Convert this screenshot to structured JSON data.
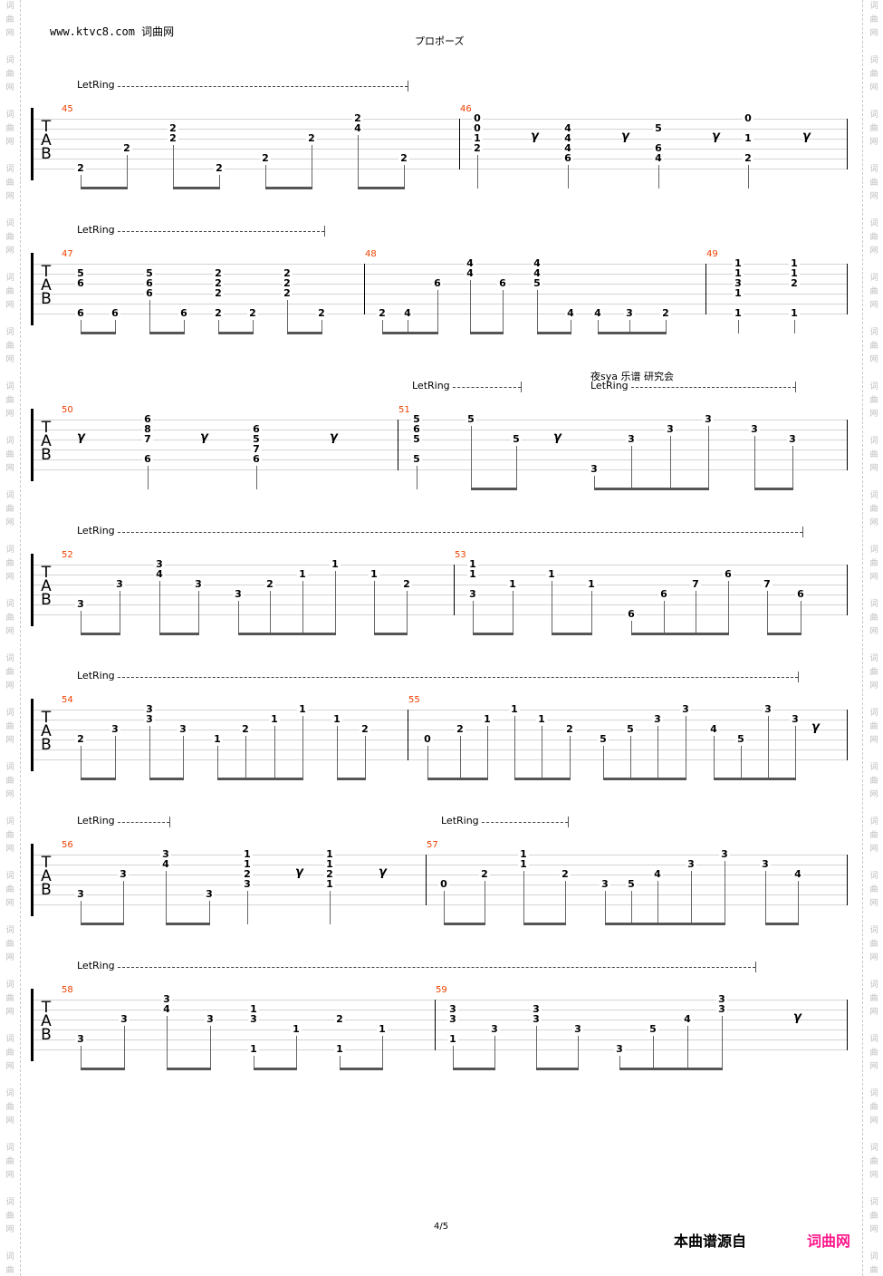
{
  "header": {
    "site": "www.ktvc8.com",
    "site_cn": "词曲网",
    "title": "プロポーズ"
  },
  "watermark": "词曲网",
  "clef": [
    "T",
    "A",
    "B"
  ],
  "let_ring": "LetRing",
  "annotation": "夜sya 乐谱 研究会",
  "footer": {
    "page": "4/5",
    "source_label": "本曲谱源自",
    "source_logo": "词曲网"
  },
  "colors": {
    "measure_number": "#f04000",
    "logo": "#ff1a8c"
  },
  "systems": [
    {
      "measures": [
        {
          "number": "45",
          "beats": [
            [
              [
                6,
                "2"
              ]
            ],
            [
              [
                4,
                "2"
              ]
            ],
            [
              [
                2,
                "2"
              ],
              [
                3,
                "2"
              ]
            ],
            [
              [
                6,
                "2"
              ]
            ],
            [
              [
                5,
                "2"
              ]
            ],
            [
              [
                3,
                "2"
              ]
            ],
            [
              [
                1,
                "2"
              ],
              [
                2,
                "4"
              ]
            ],
            [
              [
                5,
                "2"
              ]
            ]
          ]
        },
        {
          "number": "46",
          "beats": [
            [
              [
                1,
                "0"
              ],
              [
                2,
                "0"
              ],
              [
                3,
                "1"
              ],
              [
                4,
                "2"
              ]
            ],
            "R",
            [
              [
                2,
                "4"
              ],
              [
                3,
                "4"
              ],
              [
                4,
                "4"
              ],
              [
                5,
                "6"
              ]
            ],
            "R",
            [
              [
                2,
                "5"
              ],
              [
                4,
                "6"
              ],
              [
                5,
                "4"
              ]
            ],
            "R",
            [
              [
                1,
                "0"
              ],
              [
                3,
                "1"
              ],
              [
                5,
                "2"
              ]
            ],
            "R"
          ]
        }
      ]
    },
    {
      "measures": [
        {
          "number": "47",
          "beats": [
            [
              [
                2,
                "5"
              ],
              [
                3,
                "6"
              ],
              [
                6,
                "6"
              ]
            ],
            [
              [
                6,
                "6"
              ]
            ],
            [
              [
                2,
                "5"
              ],
              [
                3,
                "6"
              ],
              [
                4,
                "6"
              ]
            ],
            [
              [
                6,
                "6"
              ]
            ],
            [
              [
                2,
                "2"
              ],
              [
                3,
                "2"
              ],
              [
                4,
                "2"
              ],
              [
                6,
                "2"
              ]
            ],
            [
              [
                6,
                "2"
              ]
            ],
            [
              [
                2,
                "2"
              ],
              [
                3,
                "2"
              ],
              [
                4,
                "2"
              ]
            ],
            [
              [
                6,
                "2"
              ]
            ]
          ]
        },
        {
          "number": "48",
          "beats": [
            [
              [
                6,
                "2"
              ]
            ],
            [
              [
                6,
                "4"
              ]
            ],
            [
              [
                3,
                "6"
              ]
            ],
            [
              [
                1,
                "4"
              ],
              [
                2,
                "4"
              ]
            ],
            [
              [
                3,
                "6"
              ]
            ],
            [
              [
                1,
                "4"
              ],
              [
                2,
                "4"
              ],
              [
                3,
                "5"
              ]
            ],
            [
              [
                6,
                "4"
              ]
            ],
            [
              [
                6,
                "4"
              ]
            ],
            [
              [
                6,
                "3"
              ]
            ],
            [
              [
                6,
                "2"
              ]
            ]
          ]
        },
        {
          "number": "49",
          "beats": [
            [
              [
                1,
                "1"
              ],
              [
                2,
                "1"
              ],
              [
                3,
                "3"
              ],
              [
                4,
                "1"
              ],
              [
                6,
                "1"
              ]
            ],
            [
              [
                1,
                "1"
              ],
              [
                2,
                "1"
              ],
              [
                3,
                "2"
              ],
              [
                6,
                "1"
              ]
            ]
          ]
        }
      ]
    },
    {
      "measures": [
        {
          "number": "50",
          "beats": [
            "R",
            [
              [
                1,
                "6"
              ],
              [
                2,
                "8"
              ],
              [
                3,
                "7"
              ],
              [
                5,
                "6"
              ]
            ],
            "R",
            [
              [
                2,
                "6"
              ],
              [
                3,
                "5"
              ],
              [
                4,
                "7"
              ],
              [
                5,
                "6"
              ]
            ],
            "R"
          ]
        },
        {
          "number": "51",
          "beats": [
            [
              [
                1,
                "5"
              ],
              [
                2,
                "6"
              ],
              [
                3,
                "5"
              ],
              [
                5,
                "5"
              ]
            ],
            [
              [
                1,
                "5"
              ]
            ],
            [
              [
                3,
                "5"
              ]
            ],
            "R",
            [
              [
                6,
                "3"
              ]
            ],
            [
              [
                3,
                "3"
              ]
            ],
            [
              [
                2,
                "3"
              ]
            ],
            [
              [
                1,
                "3"
              ]
            ],
            [
              [
                2,
                "3"
              ]
            ],
            [
              [
                3,
                "3"
              ]
            ]
          ]
        }
      ]
    },
    {
      "measures": [
        {
          "number": "52",
          "beats": [
            [
              [
                5,
                "3"
              ]
            ],
            [
              [
                3,
                "3"
              ]
            ],
            [
              [
                1,
                "3"
              ],
              [
                2,
                "4"
              ]
            ],
            [
              [
                3,
                "3"
              ]
            ],
            [
              [
                4,
                "3"
              ]
            ],
            [
              [
                3,
                "2"
              ]
            ],
            [
              [
                2,
                "1"
              ]
            ],
            [
              [
                1,
                "1"
              ]
            ],
            [
              [
                2,
                "1"
              ]
            ],
            [
              [
                3,
                "2"
              ]
            ]
          ]
        },
        {
          "number": "53",
          "beats": [
            [
              [
                1,
                "1"
              ],
              [
                2,
                "1"
              ],
              [
                4,
                "3"
              ]
            ],
            [
              [
                3,
                "1"
              ]
            ],
            [
              [
                2,
                "1"
              ]
            ],
            [
              [
                3,
                "1"
              ]
            ],
            [
              [
                6,
                "6"
              ]
            ],
            [
              [
                4,
                "6"
              ]
            ],
            [
              [
                3,
                "7"
              ]
            ],
            [
              [
                2,
                "6"
              ]
            ],
            [
              [
                3,
                "7"
              ]
            ],
            [
              [
                4,
                "6"
              ]
            ]
          ]
        }
      ]
    },
    {
      "measures": [
        {
          "number": "54",
          "beats": [
            [
              [
                4,
                "2"
              ]
            ],
            [
              [
                3,
                "3"
              ]
            ],
            [
              [
                1,
                "3"
              ],
              [
                2,
                "3"
              ]
            ],
            [
              [
                3,
                "3"
              ]
            ],
            [
              [
                4,
                "1"
              ]
            ],
            [
              [
                3,
                "2"
              ]
            ],
            [
              [
                2,
                "1"
              ]
            ],
            [
              [
                1,
                "1"
              ]
            ],
            [
              [
                2,
                "1"
              ]
            ],
            [
              [
                3,
                "2"
              ]
            ]
          ]
        },
        {
          "number": "55",
          "beats": [
            [
              [
                4,
                "0"
              ]
            ],
            [
              [
                3,
                "2"
              ]
            ],
            [
              [
                2,
                "1"
              ]
            ],
            [
              [
                1,
                "1"
              ]
            ],
            [
              [
                2,
                "1"
              ]
            ],
            [
              [
                3,
                "2"
              ]
            ],
            [
              [
                4,
                "5"
              ]
            ],
            [
              [
                3,
                "5"
              ]
            ],
            [
              [
                2,
                "3"
              ]
            ],
            [
              [
                1,
                "3"
              ]
            ],
            [
              [
                3,
                "4"
              ]
            ],
            [
              [
                4,
                "5"
              ]
            ],
            [
              [
                1,
                "3"
              ]
            ],
            [
              [
                2,
                "3"
              ]
            ],
            "R"
          ]
        }
      ]
    },
    {
      "measures": [
        {
          "number": "56",
          "beats": [
            [
              [
                5,
                "3"
              ]
            ],
            [
              [
                3,
                "3"
              ]
            ],
            [
              [
                1,
                "3"
              ],
              [
                2,
                "4"
              ]
            ],
            [
              [
                5,
                "3"
              ]
            ],
            [
              [
                1,
                "1"
              ],
              [
                2,
                "1"
              ],
              [
                3,
                "2"
              ],
              [
                4,
                "3"
              ]
            ],
            "R",
            [
              [
                1,
                "1"
              ],
              [
                2,
                "1"
              ],
              [
                3,
                "2"
              ],
              [
                4,
                "1"
              ]
            ],
            "R"
          ]
        },
        {
          "number": "57",
          "beats": [
            [
              [
                4,
                "0"
              ]
            ],
            [
              [
                3,
                "2"
              ]
            ],
            [
              [
                1,
                "1"
              ],
              [
                2,
                "1"
              ]
            ],
            [
              [
                3,
                "2"
              ]
            ],
            [
              [
                4,
                "3"
              ]
            ],
            [
              [
                4,
                "5"
              ]
            ],
            [
              [
                3,
                "4"
              ]
            ],
            [
              [
                2,
                "3"
              ]
            ],
            [
              [
                1,
                "3"
              ]
            ],
            [
              [
                2,
                "3"
              ]
            ],
            [
              [
                3,
                "4"
              ]
            ]
          ]
        }
      ]
    },
    {
      "measures": [
        {
          "number": "58",
          "beats": [
            [
              [
                5,
                "3"
              ]
            ],
            [
              [
                3,
                "3"
              ]
            ],
            [
              [
                1,
                "3"
              ],
              [
                2,
                "4"
              ]
            ],
            [
              [
                3,
                "3"
              ]
            ],
            [
              [
                2,
                "1"
              ],
              [
                3,
                "3"
              ],
              [
                6,
                "1"
              ]
            ],
            [
              [
                4,
                "1"
              ]
            ],
            [
              [
                3,
                "2"
              ],
              [
                6,
                "1"
              ]
            ],
            [
              [
                4,
                "1"
              ]
            ]
          ]
        },
        {
          "number": "59",
          "beats": [
            [
              [
                2,
                "3"
              ],
              [
                3,
                "3"
              ],
              [
                5,
                "1"
              ]
            ],
            [
              [
                4,
                "3"
              ]
            ],
            [
              [
                2,
                "3"
              ],
              [
                3,
                "3"
              ]
            ],
            [
              [
                4,
                "3"
              ]
            ],
            [
              [
                6,
                "3"
              ]
            ],
            [
              [
                4,
                "5"
              ]
            ],
            [
              [
                3,
                "4"
              ]
            ],
            [
              [
                1,
                "3"
              ],
              [
                2,
                "3"
              ]
            ],
            "R"
          ]
        }
      ]
    }
  ]
}
